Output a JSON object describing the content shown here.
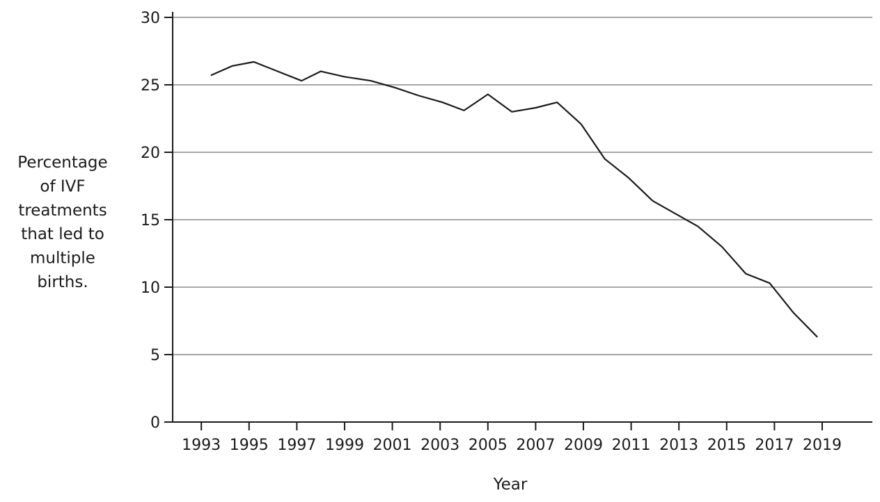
{
  "chart_data": {
    "type": "line",
    "title": "",
    "xlabel": "Year",
    "ylabel": [
      "Percentage",
      "of IVF",
      "treatments",
      "that led to",
      "multiple",
      "births."
    ],
    "ylim": [
      0,
      30
    ],
    "xlim": [
      1991.8,
      2021.1
    ],
    "yticks": [
      0,
      5,
      10,
      15,
      20,
      25,
      30
    ],
    "xticks": [
      1993,
      1995,
      1997,
      1999,
      2001,
      2003,
      2005,
      2007,
      2009,
      2011,
      2013,
      2015,
      2017,
      2019
    ],
    "grid": true,
    "legend": "none",
    "line_color": "#1a1a1a",
    "grid_color": "#a6a6a6",
    "series": [
      {
        "x": [
          1993.4,
          1994.3,
          1995.2,
          1996.2,
          1997.2,
          1998.0,
          1999.0,
          2000.1,
          2001.1,
          2002.1,
          2003.1,
          2004.0,
          2005.0,
          2006.0,
          2007.0,
          2007.9,
          2008.9,
          2009.9,
          2010.9,
          2011.9,
          2012.8,
          2013.8,
          2014.8,
          2015.8,
          2016.8,
          2017.8,
          2018.8
        ],
        "values": [
          25.7,
          26.4,
          26.7,
          26.0,
          25.3,
          26.0,
          25.6,
          25.3,
          24.8,
          24.2,
          23.7,
          23.1,
          24.3,
          23.0,
          23.3,
          23.7,
          22.1,
          19.5,
          18.1,
          16.4,
          15.5,
          14.5,
          13.0,
          11.0,
          10.3,
          8.1,
          6.3
        ]
      }
    ]
  }
}
